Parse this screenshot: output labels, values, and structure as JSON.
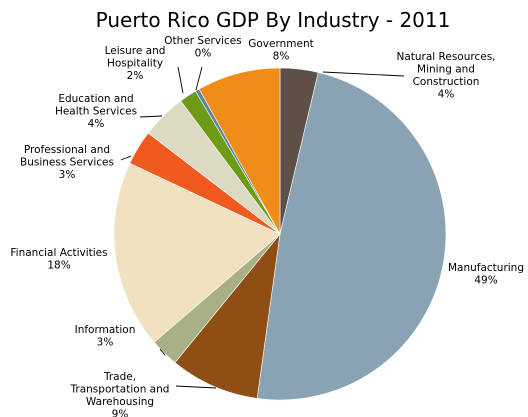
{
  "chart_data": {
    "type": "pie",
    "title": "Puerto Rico GDP By Industry - 2011",
    "start_angle_deg": 0,
    "direction": "clockwise",
    "slices": [
      {
        "name": "Natural Resources, Mining and Construction",
        "label_lines": [
          "Natural Resources,",
          "Mining and",
          "Construction"
        ],
        "pct_label": "4%",
        "value": 3.7,
        "color": "#5e5047"
      },
      {
        "name": "Manufacturing",
        "label_lines": [
          "Manufacturing"
        ],
        "pct_label": "49%",
        "value": 48.5,
        "color": "#8aa3b3"
      },
      {
        "name": "Trade, Transportation and Warehousing",
        "label_lines": [
          "Trade,",
          "Transportation and",
          "Warehousing"
        ],
        "pct_label": "9%",
        "value": 8.7,
        "color": "#8f4e14"
      },
      {
        "name": "Information",
        "label_lines": [
          "Information"
        ],
        "pct_label": "3%",
        "value": 2.8,
        "color": "#a9b088"
      },
      {
        "name": "Financial Activities",
        "label_lines": [
          "Financial Activities"
        ],
        "pct_label": "18%",
        "value": 18.3,
        "color": "#f2e1c1"
      },
      {
        "name": "Professional and Business Services",
        "label_lines": [
          "Professional and",
          "Business Services"
        ],
        "pct_label": "3%",
        "value": 3.4,
        "color": "#f05a1e"
      },
      {
        "name": "Education and Health Services",
        "label_lines": [
          "Education and",
          "Health Services"
        ],
        "pct_label": "4%",
        "value": 4.4,
        "color": "#dcdac3"
      },
      {
        "name": "Leisure and Hospitality",
        "label_lines": [
          "Leisure and",
          "Hospitality"
        ],
        "pct_label": "2%",
        "value": 1.7,
        "color": "#6e9b16"
      },
      {
        "name": "Other Services",
        "label_lines": [
          "Other Services"
        ],
        "pct_label": "0%",
        "value": 0.4,
        "color": "#5b84a1"
      },
      {
        "name": "Government",
        "label_lines": [
          "Government"
        ],
        "pct_label": "8%",
        "value": 8.1,
        "color": "#f08c1a"
      }
    ]
  }
}
